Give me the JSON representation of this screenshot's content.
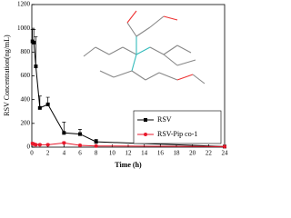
{
  "chart_data": {
    "type": "line",
    "x_label": "Time (h)",
    "y_label": "RSV Concentration(ng/mL)",
    "x": [
      0.083,
      0.25,
      0.5,
      1,
      2,
      4,
      6,
      8,
      24
    ],
    "series": [
      {
        "name": "RSV",
        "color": "#000000",
        "marker": "square",
        "values": [
          890,
          880,
          680,
          330,
          360,
          120,
          110,
          45,
          5
        ],
        "errors": [
          100,
          110,
          250,
          100,
          60,
          90,
          40,
          20,
          5
        ]
      },
      {
        "name": "RSV-Pip co-1",
        "color": "#e8192c",
        "marker": "circle",
        "values": [
          30,
          25,
          20,
          20,
          20,
          35,
          15,
          10,
          5
        ],
        "errors": [
          10,
          10,
          8,
          8,
          8,
          10,
          6,
          5,
          3
        ]
      }
    ],
    "xlim": [
      0,
      24
    ],
    "xticks": [
      0,
      2,
      4,
      6,
      8,
      10,
      12,
      14,
      16,
      18,
      20,
      22,
      24
    ],
    "ylim": [
      0,
      1200
    ],
    "yticks": [
      0,
      200,
      400,
      600,
      800,
      1000,
      1200
    ],
    "legend": "lower right"
  }
}
